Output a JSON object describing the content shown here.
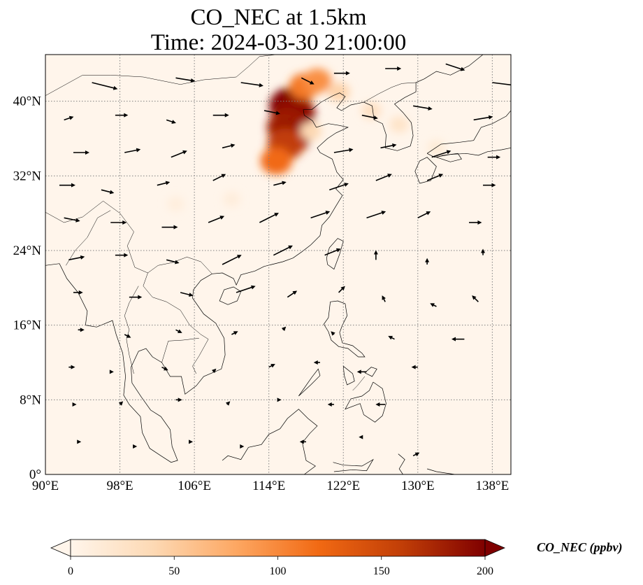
{
  "title": {
    "line1": "CO_NEC at 1.5km",
    "line2": "Time: 2024-03-30 21:00:00"
  },
  "map": {
    "extent": {
      "lon": [
        90,
        140
      ],
      "lat": [
        0,
        45
      ]
    },
    "lon_ticks": [
      {
        "value": 90,
        "label": "90°E"
      },
      {
        "value": 98,
        "label": "98°E"
      },
      {
        "value": 106,
        "label": "106°E"
      },
      {
        "value": 114,
        "label": "114°E"
      },
      {
        "value": 122,
        "label": "122°E"
      },
      {
        "value": 130,
        "label": "130°E"
      },
      {
        "value": 138,
        "label": "138°E"
      }
    ],
    "lat_ticks": [
      {
        "value": 0,
        "label": "0°"
      },
      {
        "value": 8,
        "label": "8°N"
      },
      {
        "value": 16,
        "label": "16°N"
      },
      {
        "value": 24,
        "label": "24°N"
      },
      {
        "value": 32,
        "label": "32°N"
      },
      {
        "value": 40,
        "label": "40°N"
      }
    ],
    "gridlines": true,
    "background_color": "#fff5eb",
    "coastline_color": "#000000",
    "vector_color": "#000000"
  },
  "field": {
    "plumes": [
      {
        "lon": 116.3,
        "lat": 39.5,
        "value": 200
      },
      {
        "lon": 116.8,
        "lat": 38.6,
        "value": 190
      },
      {
        "lon": 115.9,
        "lat": 37.2,
        "value": 180
      },
      {
        "lon": 116.4,
        "lat": 36.3,
        "value": 185
      },
      {
        "lon": 115.8,
        "lat": 35.4,
        "value": 160
      },
      {
        "lon": 114.8,
        "lat": 33.6,
        "value": 120
      },
      {
        "lon": 117.8,
        "lat": 41.6,
        "value": 110
      },
      {
        "lon": 119.2,
        "lat": 42.2,
        "value": 95
      },
      {
        "lon": 121.5,
        "lat": 41.0,
        "value": 45
      },
      {
        "lon": 125.0,
        "lat": 39.0,
        "value": 30
      },
      {
        "lon": 128.0,
        "lat": 37.5,
        "value": 25
      },
      {
        "lon": 118.5,
        "lat": 36.8,
        "value": 40
      },
      {
        "lon": 110.0,
        "lat": 29.5,
        "value": 12
      },
      {
        "lon": 104.0,
        "lat": 29.0,
        "value": 10
      },
      {
        "lon": 132.0,
        "lat": 35.0,
        "value": 15
      }
    ]
  },
  "wind": {
    "vectors": [
      {
        "lon": 95.0,
        "lat": 42.0,
        "u": 8,
        "v": -2
      },
      {
        "lon": 104.0,
        "lat": 42.5,
        "u": 6,
        "v": -1
      },
      {
        "lon": 111.0,
        "lat": 42.0,
        "u": 7,
        "v": -1
      },
      {
        "lon": 117.5,
        "lat": 42.5,
        "u": 4,
        "v": -2
      },
      {
        "lon": 121.0,
        "lat": 43.0,
        "u": 5,
        "v": 0
      },
      {
        "lon": 126.5,
        "lat": 43.5,
        "u": 5,
        "v": 0
      },
      {
        "lon": 133.0,
        "lat": 44.0,
        "u": 6,
        "v": -2
      },
      {
        "lon": 138.0,
        "lat": 42.0,
        "u": 8,
        "v": -1
      },
      {
        "lon": 92.0,
        "lat": 38.0,
        "u": 3,
        "v": 1
      },
      {
        "lon": 97.5,
        "lat": 38.5,
        "u": 4,
        "v": 0
      },
      {
        "lon": 103.0,
        "lat": 38.0,
        "u": 3,
        "v": -1
      },
      {
        "lon": 108.0,
        "lat": 38.5,
        "u": 5,
        "v": 0
      },
      {
        "lon": 113.5,
        "lat": 39.0,
        "u": 5,
        "v": -1
      },
      {
        "lon": 124.0,
        "lat": 38.5,
        "u": 5,
        "v": -1
      },
      {
        "lon": 129.5,
        "lat": 39.5,
        "u": 6,
        "v": -1
      },
      {
        "lon": 136.0,
        "lat": 38.0,
        "u": 6,
        "v": 1
      },
      {
        "lon": 93.0,
        "lat": 34.5,
        "u": 5,
        "v": 0
      },
      {
        "lon": 98.5,
        "lat": 34.5,
        "u": 5,
        "v": 1
      },
      {
        "lon": 103.5,
        "lat": 34.0,
        "u": 5,
        "v": 2
      },
      {
        "lon": 109.0,
        "lat": 35.0,
        "u": 4,
        "v": 1
      },
      {
        "lon": 121.0,
        "lat": 34.5,
        "u": 6,
        "v": 1
      },
      {
        "lon": 126.0,
        "lat": 35.0,
        "u": 5,
        "v": 1
      },
      {
        "lon": 131.5,
        "lat": 34.0,
        "u": 6,
        "v": 2
      },
      {
        "lon": 137.5,
        "lat": 34.0,
        "u": 4,
        "v": 0
      },
      {
        "lon": 91.5,
        "lat": 31.0,
        "u": 5,
        "v": 0
      },
      {
        "lon": 96.0,
        "lat": 30.5,
        "u": 4,
        "v": -1
      },
      {
        "lon": 102.0,
        "lat": 31.0,
        "u": 4,
        "v": 1
      },
      {
        "lon": 108.0,
        "lat": 31.5,
        "u": 4,
        "v": 2
      },
      {
        "lon": 114.5,
        "lat": 31.0,
        "u": 4,
        "v": 1
      },
      {
        "lon": 120.5,
        "lat": 30.5,
        "u": 6,
        "v": 2
      },
      {
        "lon": 125.5,
        "lat": 31.5,
        "u": 5,
        "v": 2
      },
      {
        "lon": 131.0,
        "lat": 31.5,
        "u": 5,
        "v": 2
      },
      {
        "lon": 137.0,
        "lat": 31.0,
        "u": 4,
        "v": 0
      },
      {
        "lon": 92.0,
        "lat": 27.5,
        "u": 5,
        "v": -1
      },
      {
        "lon": 97.0,
        "lat": 27.0,
        "u": 5,
        "v": 0
      },
      {
        "lon": 102.5,
        "lat": 26.5,
        "u": 5,
        "v": 0
      },
      {
        "lon": 107.5,
        "lat": 27.0,
        "u": 5,
        "v": 2
      },
      {
        "lon": 113.0,
        "lat": 27.0,
        "u": 6,
        "v": 3
      },
      {
        "lon": 118.5,
        "lat": 27.5,
        "u": 6,
        "v": 2
      },
      {
        "lon": 124.5,
        "lat": 27.5,
        "u": 6,
        "v": 2
      },
      {
        "lon": 130.0,
        "lat": 27.5,
        "u": 4,
        "v": 2
      },
      {
        "lon": 135.5,
        "lat": 27.0,
        "u": 4,
        "v": 0
      },
      {
        "lon": 92.5,
        "lat": 23.0,
        "u": 5,
        "v": 1
      },
      {
        "lon": 97.5,
        "lat": 23.5,
        "u": 4,
        "v": 0
      },
      {
        "lon": 103.0,
        "lat": 23.0,
        "u": 4,
        "v": -1
      },
      {
        "lon": 109.0,
        "lat": 22.5,
        "u": 6,
        "v": 3
      },
      {
        "lon": 114.5,
        "lat": 23.5,
        "u": 6,
        "v": 3
      },
      {
        "lon": 120.0,
        "lat": 23.5,
        "u": 5,
        "v": 2
      },
      {
        "lon": 125.5,
        "lat": 23.0,
        "u": 0,
        "v": 3
      },
      {
        "lon": 131.0,
        "lat": 22.5,
        "u": 0,
        "v": 2
      },
      {
        "lon": 137.0,
        "lat": 23.5,
        "u": 0,
        "v": 2
      },
      {
        "lon": 93.0,
        "lat": 19.5,
        "u": 3,
        "v": 0
      },
      {
        "lon": 99.0,
        "lat": 19.0,
        "u": 4,
        "v": 0
      },
      {
        "lon": 104.5,
        "lat": 19.5,
        "u": 4,
        "v": -1
      },
      {
        "lon": 110.5,
        "lat": 19.5,
        "u": 6,
        "v": 2
      },
      {
        "lon": 116.0,
        "lat": 19.0,
        "u": 3,
        "v": 2
      },
      {
        "lon": 121.5,
        "lat": 19.5,
        "u": 2,
        "v": 2
      },
      {
        "lon": 126.5,
        "lat": 18.5,
        "u": -1,
        "v": 2
      },
      {
        "lon": 132.0,
        "lat": 18.0,
        "u": -2,
        "v": 1
      },
      {
        "lon": 136.5,
        "lat": 18.5,
        "u": -2,
        "v": 2
      },
      {
        "lon": 93.5,
        "lat": 15.5,
        "u": 2,
        "v": 0
      },
      {
        "lon": 98.5,
        "lat": 15.0,
        "u": 2,
        "v": -1
      },
      {
        "lon": 104.0,
        "lat": 15.5,
        "u": 2,
        "v": -1
      },
      {
        "lon": 110.0,
        "lat": 15.0,
        "u": 2,
        "v": 1
      },
      {
        "lon": 115.5,
        "lat": 15.5,
        "u": 1,
        "v": 1
      },
      {
        "lon": 121.0,
        "lat": 15.0,
        "u": -1,
        "v": 1
      },
      {
        "lon": 127.5,
        "lat": 14.5,
        "u": -2,
        "v": 1
      },
      {
        "lon": 135.0,
        "lat": 14.5,
        "u": -4,
        "v": 0
      },
      {
        "lon": 92.5,
        "lat": 11.5,
        "u": 2,
        "v": 0
      },
      {
        "lon": 97.0,
        "lat": 11.0,
        "u": 1,
        "v": 0
      },
      {
        "lon": 102.5,
        "lat": 11.5,
        "u": 2,
        "v": -1
      },
      {
        "lon": 108.0,
        "lat": 11.0,
        "u": 1,
        "v": 1
      },
      {
        "lon": 114.0,
        "lat": 11.5,
        "u": 2,
        "v": 1
      },
      {
        "lon": 119.5,
        "lat": 12.0,
        "u": -2,
        "v": 0
      },
      {
        "lon": 124.5,
        "lat": 11.0,
        "u": -3,
        "v": 0
      },
      {
        "lon": 130.0,
        "lat": 11.5,
        "u": -2,
        "v": 0
      },
      {
        "lon": 93.0,
        "lat": 7.5,
        "u": 1,
        "v": 0
      },
      {
        "lon": 98.0,
        "lat": 7.5,
        "u": 1,
        "v": 1
      },
      {
        "lon": 104.0,
        "lat": 8.0,
        "u": 2,
        "v": 0
      },
      {
        "lon": 109.5,
        "lat": 7.5,
        "u": 1,
        "v": 1
      },
      {
        "lon": 115.0,
        "lat": 8.0,
        "u": 1,
        "v": 0
      },
      {
        "lon": 121.0,
        "lat": 7.5,
        "u": -2,
        "v": 0
      },
      {
        "lon": 126.5,
        "lat": 7.5,
        "u": -3,
        "v": 0
      },
      {
        "lon": 93.5,
        "lat": 3.5,
        "u": 1,
        "v": 0
      },
      {
        "lon": 99.5,
        "lat": 3.0,
        "u": 1,
        "v": 0
      },
      {
        "lon": 105.5,
        "lat": 3.5,
        "u": 1,
        "v": 0
      },
      {
        "lon": 111.0,
        "lat": 3.0,
        "u": 1,
        "v": 0
      },
      {
        "lon": 118.0,
        "lat": 3.5,
        "u": -2,
        "v": 0
      },
      {
        "lon": 124.0,
        "lat": 4.0,
        "u": -1,
        "v": 0
      },
      {
        "lon": 129.5,
        "lat": 2.0,
        "u": 2,
        "v": 1
      }
    ]
  },
  "colorbar": {
    "label": "CO_NEC (ppbv)",
    "ticks": [
      {
        "value": 0,
        "label": "0"
      },
      {
        "value": 50,
        "label": "50"
      },
      {
        "value": 100,
        "label": "100"
      },
      {
        "value": 150,
        "label": "150"
      },
      {
        "value": 200,
        "label": "200"
      }
    ],
    "range": [
      0,
      200
    ],
    "colormap": [
      "#fff5eb",
      "#fdd9b4",
      "#fda762",
      "#f16913",
      "#c13e07",
      "#7f0000"
    ],
    "extend": "both"
  }
}
